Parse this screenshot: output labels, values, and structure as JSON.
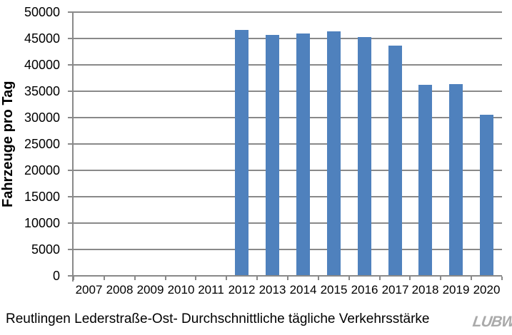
{
  "chart_data": {
    "type": "bar",
    "title": "",
    "categories": [
      "2007",
      "2008",
      "2009",
      "2010",
      "2011",
      "2012",
      "2013",
      "2014",
      "2015",
      "2016",
      "2017",
      "2018",
      "2019",
      "2020"
    ],
    "values": [
      null,
      null,
      null,
      null,
      null,
      46600,
      45700,
      45900,
      46300,
      45300,
      43700,
      36200,
      36300,
      30600
    ],
    "xlabel": "",
    "ylabel": "Fahrzeuge pro Tag",
    "ylim": [
      0,
      50000
    ],
    "yticks": [
      0,
      5000,
      10000,
      15000,
      20000,
      25000,
      30000,
      35000,
      40000,
      45000,
      50000
    ],
    "grid": true,
    "legend": false,
    "bar_color": "#4F81BD",
    "grid_color": "#898989",
    "axis_color": "#898989",
    "text_color": "#000000"
  },
  "caption": "Reutlingen Lederstraße-Ost- Durchschnittliche tägliche Verkehrsstärke",
  "logo": {
    "text": "LUBW",
    "color": "#aaaaaa"
  }
}
